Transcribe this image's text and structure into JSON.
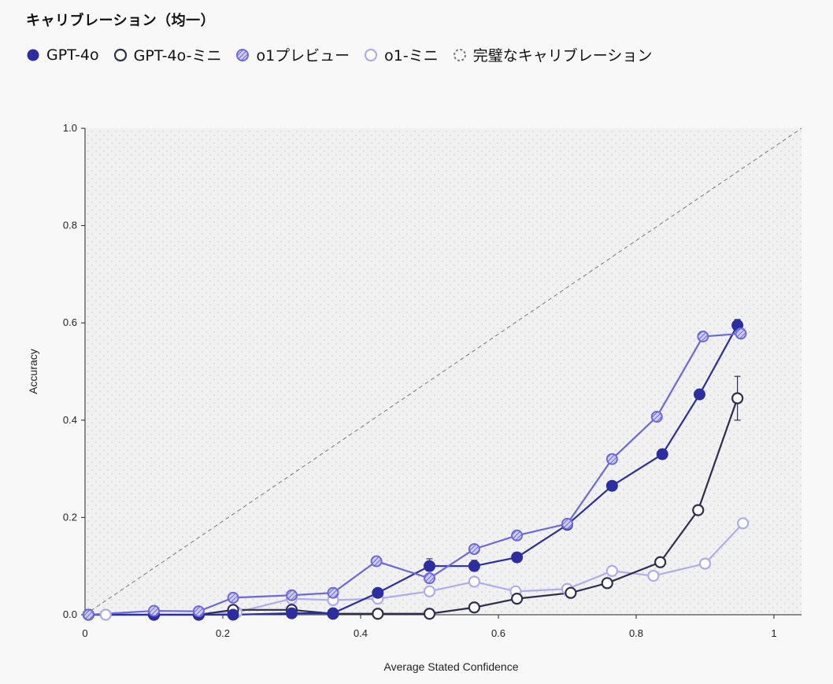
{
  "chart_data": {
    "type": "line",
    "title": "キャリブレーション（均一）",
    "xlabel": "Average Stated Confidence",
    "ylabel": "Accuracy",
    "xlim": [
      0,
      1.04
    ],
    "ylim": [
      0,
      1.0
    ],
    "x_ticks": [
      "0",
      "0.2",
      "0.4",
      "0.6",
      "0.8",
      "1"
    ],
    "y_ticks": [
      "0.0",
      "0.2",
      "0.4",
      "0.6",
      "0.8",
      "1.0"
    ],
    "x_tick_values": [
      0,
      0.2,
      0.4,
      0.6,
      0.8,
      1.0
    ],
    "y_tick_values": [
      0,
      0.2,
      0.4,
      0.6,
      0.8,
      1.0
    ],
    "grid": false,
    "background": "dotted",
    "legend_position": "top-left",
    "series": [
      {
        "name": "GPT-4o",
        "style": "filled",
        "color": "#2b2ea0",
        "x": [
          0.005,
          0.1,
          0.165,
          0.215,
          0.3,
          0.36,
          0.425,
          0.5,
          0.565,
          0.627,
          0.7,
          0.765,
          0.838,
          0.892,
          0.947
        ],
        "y": [
          0.0,
          0.0,
          0.0,
          0.0,
          0.003,
          0.003,
          0.045,
          0.1,
          0.1,
          0.118,
          0.185,
          0.265,
          0.33,
          0.453,
          0.595
        ]
      },
      {
        "name": "GPT-4o-ミニ",
        "style": "hollow",
        "color": "#2f2d4e",
        "x": [
          0.005,
          0.1,
          0.165,
          0.215,
          0.3,
          0.36,
          0.425,
          0.5,
          0.565,
          0.627,
          0.705,
          0.758,
          0.835,
          0.89,
          0.947
        ],
        "y": [
          0.0,
          0.0,
          0.0,
          0.01,
          0.01,
          0.002,
          0.002,
          0.002,
          0.015,
          0.033,
          0.045,
          0.065,
          0.108,
          0.215,
          0.445
        ]
      },
      {
        "name": "o1プレビュー",
        "style": "hatched",
        "color": "#6b68e0",
        "x": [
          0.005,
          0.1,
          0.165,
          0.215,
          0.3,
          0.36,
          0.423,
          0.5,
          0.565,
          0.627,
          0.7,
          0.765,
          0.83,
          0.897,
          0.952
        ],
        "y": [
          0.0,
          0.008,
          0.007,
          0.035,
          0.04,
          0.045,
          0.11,
          0.075,
          0.135,
          0.163,
          0.187,
          0.32,
          0.407,
          0.572,
          0.578
        ]
      },
      {
        "name": "o1-ミニ",
        "style": "light",
        "color": "#aeacec",
        "x": [
          0.03,
          0.1,
          0.165,
          0.22,
          0.3,
          0.36,
          0.425,
          0.5,
          0.565,
          0.625,
          0.7,
          0.765,
          0.825,
          0.9,
          0.955
        ],
        "y": [
          0.0,
          0.0,
          0.0,
          0.005,
          0.033,
          0.03,
          0.033,
          0.048,
          0.068,
          0.048,
          0.053,
          0.09,
          0.08,
          0.105,
          0.188
        ]
      }
    ],
    "error_bars": [
      {
        "series": "GPT-4o",
        "x": 0.425,
        "y": 0.045,
        "low": 0.04,
        "high": 0.052
      },
      {
        "series": "GPT-4o",
        "x": 0.5,
        "y": 0.1,
        "low": 0.09,
        "high": 0.115
      },
      {
        "series": "GPT-4o",
        "x": 0.565,
        "y": 0.1,
        "low": 0.09,
        "high": 0.112
      },
      {
        "series": "GPT-4o",
        "x": 0.947,
        "y": 0.595,
        "low": 0.585,
        "high": 0.607
      },
      {
        "series": "GPT-4o-ミニ",
        "x": 0.947,
        "y": 0.445,
        "low": 0.4,
        "high": 0.49
      },
      {
        "series": "o1プレビュー",
        "x": 0.36,
        "y": 0.045,
        "low": 0.04,
        "high": 0.055
      }
    ],
    "reference_line": {
      "name": "完璧なキャリブレーション",
      "x": [
        0,
        1.04
      ],
      "y": [
        0,
        1.0
      ],
      "style": "dashed",
      "color": "#777777"
    }
  },
  "legend": {
    "items": [
      {
        "label": "GPT-4o",
        "style": "filled",
        "color": "#2b2ea0"
      },
      {
        "label": "GPT-4o-ミニ",
        "style": "hollow",
        "color": "#2f2d4e"
      },
      {
        "label": "o1プレビュー",
        "style": "hatched",
        "color": "#6b68e0"
      },
      {
        "label": "o1-ミニ",
        "style": "light",
        "color": "#aeacec"
      },
      {
        "label": "完璧なキャリブレーション",
        "style": "dashed-circle",
        "color": "#777777"
      }
    ]
  }
}
